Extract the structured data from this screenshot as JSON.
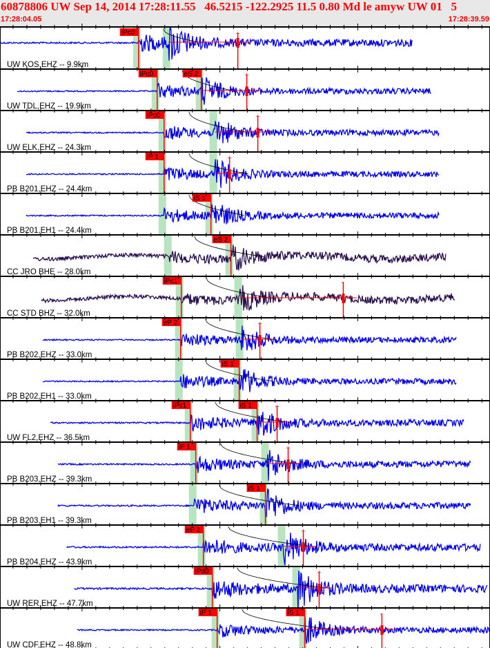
{
  "header": {
    "title": "60878806 UW Sep 14, 2014 17:28:11.55   46.5215 -122.2925 11.5 0.80 Md le amyw UW 01   5",
    "start_time": "17:28:04.05",
    "end_time": "17:28:39.59"
  },
  "chart_data": {
    "type": "line",
    "title": "Seismogram record section",
    "x_unit": "seconds after 17:28:04.05",
    "xlim": [
      0,
      35.54
    ],
    "tick_interval_s": 1,
    "colors": {
      "trace": "#0000ee",
      "broadband": "#2a1050",
      "pick": "#ff0000",
      "window": "#b8e4c0",
      "curve": "#000000",
      "frame": "#000000"
    },
    "traces": [
      {
        "label": "UW KOS,EHZ -- 9.9km",
        "start": 0.0,
        "end": 29.9,
        "color": "trace",
        "amp": 1.0,
        "P": {
          "label": "iPc0",
          "t": 10.05
        },
        "S": {
          "t": 12.2
        },
        "end_mark": {
          "t": 17.25,
          "sign": "+"
        }
      },
      {
        "label": "UW TDL,EHZ -- 19.9km",
        "start": 1.25,
        "end": 31.25,
        "color": "trace",
        "amp": 0.8,
        "P": {
          "label": "iPc0",
          "t": 11.4
        },
        "S": {
          "label": "eS 2",
          "t": 14.6
        },
        "end_mark": {
          "t": 17.9,
          "sign": "+"
        }
      },
      {
        "label": "UW ELK,EHZ -- 24.3km",
        "start": 1.9,
        "end": 31.85,
        "color": "trace",
        "amp": 0.8,
        "P": {
          "label": "iPc0",
          "t": 11.9
        },
        "S": {
          "t": 15.6
        },
        "end_mark": {
          "t": 18.7,
          "sign": "+"
        }
      },
      {
        "label": "PB B201,EHZ -- 24.4km",
        "start": 1.9,
        "end": 31.85,
        "color": "trace",
        "amp": 0.8,
        "P": {
          "label": "iP 1",
          "t": 11.9
        },
        "S": {
          "t": 15.6
        },
        "end_mark": {
          "t": 16.65,
          "sign": "+"
        }
      },
      {
        "label": "PB B201,EH1 -- 24.4km",
        "start": 1.9,
        "end": 31.85,
        "color": "trace",
        "amp": 0.8,
        "P": {
          "t": 11.9
        },
        "S": {
          "label": "iS 1",
          "t": 15.3
        }
      },
      {
        "label": "CC JRO BHE -- 28.0km",
        "start": 2.4,
        "end": 32.35,
        "color": "broadband",
        "amp": 0.7,
        "P": {
          "t": 12.3
        },
        "S": {
          "label": "eS 2",
          "t": 16.75
        }
      },
      {
        "label": "CC STD BHZ -- 32.0km",
        "start": 3.0,
        "end": 33.0,
        "color": "broadband",
        "amp": 0.7,
        "P": {
          "label": "iPc1",
          "t": 13.15
        },
        "S": {
          "t": 17.4
        },
        "end_mark": {
          "t": 24.9,
          "sign": "-"
        }
      },
      {
        "label": "PB B202,EHZ -- 33.0km",
        "start": 3.1,
        "end": 33.1,
        "color": "trace",
        "amp": 0.8,
        "P": {
          "label": "eP 2",
          "t": 13.1
        },
        "S": {
          "t": 17.5
        },
        "end_mark": {
          "t": 18.85,
          "sign": "+"
        }
      },
      {
        "label": "PB B202,EH1 -- 33.0km",
        "start": 3.1,
        "end": 33.1,
        "color": "trace",
        "amp": 0.8,
        "P": {
          "t": 13.1
        },
        "S": {
          "label": "iS 1",
          "t": 17.35
        }
      },
      {
        "label": "UW FL2,EHZ -- 36.5km",
        "start": 3.65,
        "end": 33.65,
        "color": "trace",
        "amp": 0.9,
        "P": {
          "label": "iPc1",
          "t": 13.8
        },
        "S": {
          "label": "iS 1",
          "t": 18.65
        },
        "end_mark": {
          "t": 20.1,
          "sign": "+"
        }
      },
      {
        "label": "PB B203,EHZ -- 39.3km",
        "start": 4.2,
        "end": 34.15,
        "color": "trace",
        "amp": 0.9,
        "P": {
          "label": "iP 1",
          "t": 14.2
        },
        "S": {
          "t": 19.35
        },
        "end_mark": {
          "t": 20.9,
          "sign": "+"
        }
      },
      {
        "label": "PB B203,EH1 -- 39.3km",
        "start": 4.2,
        "end": 34.15,
        "color": "trace",
        "amp": 0.9,
        "P": {
          "t": 14.1
        },
        "S": {
          "label": "iS 1",
          "t": 19.25
        }
      },
      {
        "label": "PB B204,EHZ -- 43.9km",
        "start": 4.85,
        "end": 34.85,
        "color": "trace",
        "amp": 1.0,
        "P": {
          "label": "eP 2",
          "t": 14.75
        },
        "S": {
          "t": 20.55
        },
        "end_mark": {
          "t": 22.0,
          "sign": "+"
        }
      },
      {
        "label": "UW RER,EHZ -- 47.7km",
        "start": 5.4,
        "end": 35.35,
        "color": "trace",
        "amp": 1.1,
        "P": {
          "label": "iPd0",
          "t": 15.4
        },
        "S": {
          "t": 21.6
        },
        "end_mark": {
          "t": 23.15,
          "sign": "+"
        }
      },
      {
        "label": "UW CDF,EHZ -- 48.8km",
        "start": 5.6,
        "end": 35.5,
        "color": "trace",
        "amp": 0.8,
        "P": {
          "label": "iP 1",
          "t": 15.75
        },
        "S": {
          "label": "iS 1",
          "t": 22.1
        },
        "end_mark": {
          "t": 27.7,
          "sign": "-"
        }
      }
    ]
  }
}
